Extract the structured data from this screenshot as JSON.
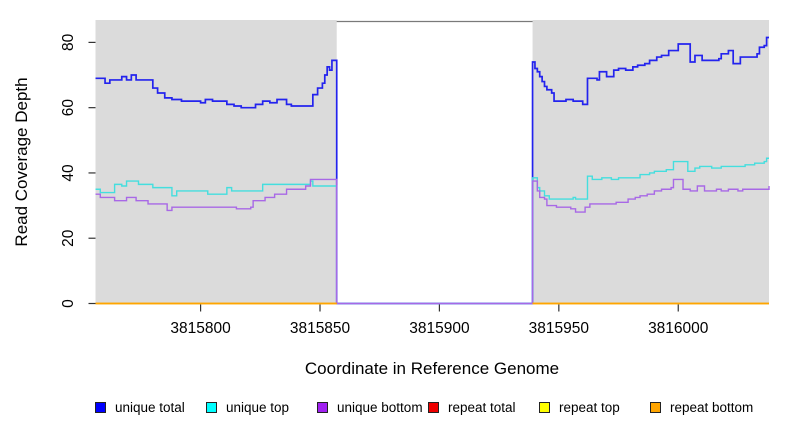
{
  "chart_data": {
    "type": "line",
    "step": true,
    "title": "",
    "xlabel": "Coordinate in Reference Genome",
    "ylabel": "Read Coverage Depth",
    "xlim": [
      3815756,
      3816038
    ],
    "ylim": [
      0,
      86.4
    ],
    "xticks": [
      3815800,
      3815850,
      3815900,
      3815950,
      3816000
    ],
    "yticks": [
      0,
      20,
      40,
      60,
      80
    ],
    "grid": false,
    "plot_background": "#ffffff",
    "shaded_regions": {
      "color": "#dbdbdb",
      "ranges": [
        [
          3815756,
          3815857
        ],
        [
          3815939,
          3816038
        ]
      ]
    },
    "gap_region": [
      3815857,
      3815939
    ],
    "legend_position": "bottom",
    "series": [
      {
        "name": "unique total",
        "color": "#2323ee",
        "legend_color": "#0000ff",
        "width": 1.7,
        "segments": [
          [
            [
              3815756,
              69
            ],
            [
              3815760,
              67.5
            ],
            [
              3815762,
              68.5
            ],
            [
              3815767,
              69.5
            ],
            [
              3815769,
              68.5
            ],
            [
              3815771,
              70
            ],
            [
              3815773,
              68.5
            ],
            [
              3815780,
              66
            ],
            [
              3815782,
              64.5
            ],
            [
              3815785,
              63
            ],
            [
              3815788,
              62.5
            ],
            [
              3815792,
              62
            ],
            [
              3815800,
              61.5
            ],
            [
              3815802,
              62.5
            ],
            [
              3815805,
              62
            ],
            [
              3815811,
              61
            ],
            [
              3815814,
              60.5
            ],
            [
              3815817,
              60
            ],
            [
              3815823,
              61
            ],
            [
              3815826,
              62
            ],
            [
              3815829,
              61.5
            ],
            [
              3815832,
              62.5
            ],
            [
              3815836,
              61
            ],
            [
              3815838,
              60.5
            ],
            [
              3815847,
              64
            ],
            [
              3815849,
              66
            ],
            [
              3815851,
              67.5
            ],
            [
              3815852,
              70
            ],
            [
              3815853,
              72.5
            ],
            [
              3815854,
              71.5
            ],
            [
              3815855,
              74.5
            ],
            [
              3815857,
              0
            ],
            [
              3815939,
              74
            ],
            [
              3815940,
              72
            ],
            [
              3815941,
              71
            ],
            [
              3815942,
              69.5
            ],
            [
              3815943,
              68
            ],
            [
              3815944,
              66.5
            ],
            [
              3815945,
              65.5
            ],
            [
              3815947,
              64.5
            ],
            [
              3815948,
              62
            ],
            [
              3815953,
              62.5
            ],
            [
              3815956,
              62
            ],
            [
              3815960,
              61
            ],
            [
              3815962,
              69
            ],
            [
              3815966,
              68.5
            ],
            [
              3815967,
              71
            ],
            [
              3815970,
              69.5
            ],
            [
              3815973,
              71.5
            ],
            [
              3815975,
              72
            ],
            [
              3815978,
              71.5
            ],
            [
              3815981,
              72.5
            ],
            [
              3815983,
              73
            ],
            [
              3815986,
              73.5
            ],
            [
              3815988,
              74.5
            ],
            [
              3815991,
              75.5
            ],
            [
              3815993,
              76
            ],
            [
              3815996,
              77.5
            ],
            [
              3815999,
              77.5
            ],
            [
              3816000,
              79.5
            ],
            [
              3816005,
              74
            ],
            [
              3816007,
              76
            ],
            [
              3816010,
              74.5
            ],
            [
              3816017,
              75
            ],
            [
              3816018,
              76.5
            ],
            [
              3816021,
              77.5
            ],
            [
              3816023,
              73.5
            ],
            [
              3816026,
              75.5
            ],
            [
              3816033,
              76.5
            ],
            [
              3816034,
              78.5
            ],
            [
              3816036,
              79
            ],
            [
              3816037,
              81.5
            ],
            [
              3816038,
              81.5
            ]
          ]
        ]
      },
      {
        "name": "unique top",
        "color": "#44dede",
        "legend_color": "#00ffff",
        "width": 1.4,
        "segments": [
          [
            [
              3815756,
              35
            ],
            [
              3815758,
              34
            ],
            [
              3815764,
              36.5
            ],
            [
              3815767,
              36
            ],
            [
              3815769,
              37.5
            ],
            [
              3815774,
              36.5
            ],
            [
              3815780,
              35.5
            ],
            [
              3815788,
              33
            ],
            [
              3815790,
              34.5
            ],
            [
              3815803,
              33.5
            ],
            [
              3815811,
              35.5
            ],
            [
              3815813,
              34.5
            ],
            [
              3815826,
              36.5
            ],
            [
              3815846,
              37.5
            ],
            [
              3815847,
              36
            ],
            [
              3815857,
              0
            ],
            [
              3815939,
              38.5
            ],
            [
              3815941,
              35.5
            ],
            [
              3815942,
              34.5
            ],
            [
              3815944,
              33
            ],
            [
              3815946,
              32
            ],
            [
              3815956,
              32.5
            ],
            [
              3815957,
              32
            ],
            [
              3815962,
              39
            ],
            [
              3815964,
              38
            ],
            [
              3815968,
              38.5
            ],
            [
              3815972,
              38
            ],
            [
              3815975,
              38.5
            ],
            [
              3815984,
              39.5
            ],
            [
              3815988,
              40
            ],
            [
              3815990,
              40.5
            ],
            [
              3815995,
              41
            ],
            [
              3815998,
              43.5
            ],
            [
              3816004,
              40.5
            ],
            [
              3816007,
              41.5
            ],
            [
              3816009,
              42
            ],
            [
              3816014,
              41.5
            ],
            [
              3816018,
              42
            ],
            [
              3816028,
              42.5
            ],
            [
              3816032,
              43
            ],
            [
              3816036,
              43.5
            ],
            [
              3816037,
              44.5
            ],
            [
              3816038,
              44.5
            ]
          ]
        ]
      },
      {
        "name": "unique bottom",
        "color": "#a868e6",
        "legend_color": "#a020f0",
        "width": 1.4,
        "segments": [
          [
            [
              3815756,
              33.5
            ],
            [
              3815758,
              32.5
            ],
            [
              3815764,
              31.5
            ],
            [
              3815769,
              32.5
            ],
            [
              3815773,
              31.5
            ],
            [
              3815778,
              30.5
            ],
            [
              3815786,
              28.5
            ],
            [
              3815788,
              29.5
            ],
            [
              3815815,
              29
            ],
            [
              3815821,
              29.5
            ],
            [
              3815822,
              31.5
            ],
            [
              3815827,
              32.5
            ],
            [
              3815831,
              33.5
            ],
            [
              3815836,
              35
            ],
            [
              3815844,
              36
            ],
            [
              3815846,
              38
            ],
            [
              3815857,
              0
            ],
            [
              3815939,
              37.5
            ],
            [
              3815941,
              34.5
            ],
            [
              3815942,
              32.5
            ],
            [
              3815944,
              32
            ],
            [
              3815945,
              30
            ],
            [
              3815949,
              29.5
            ],
            [
              3815955,
              29
            ],
            [
              3815957,
              28
            ],
            [
              3815961,
              29.5
            ],
            [
              3815963,
              30.5
            ],
            [
              3815974,
              31
            ],
            [
              3815979,
              32
            ],
            [
              3815982,
              32.5
            ],
            [
              3815984,
              33
            ],
            [
              3815987,
              33.5
            ],
            [
              3815990,
              34.5
            ],
            [
              3815993,
              35
            ],
            [
              3815997,
              35.5
            ],
            [
              3815998,
              38
            ],
            [
              3816002,
              35
            ],
            [
              3816005,
              34.5
            ],
            [
              3816008,
              36
            ],
            [
              3816011,
              34.5
            ],
            [
              3816016,
              35
            ],
            [
              3816018,
              34.5
            ],
            [
              3816021,
              35
            ],
            [
              3816025,
              34.5
            ],
            [
              3816027,
              35
            ],
            [
              3816036,
              35
            ],
            [
              3816038,
              36
            ]
          ]
        ]
      },
      {
        "name": "repeat total",
        "color": "#ee0000",
        "legend_color": "#ee0000",
        "width": 1.4,
        "segments": [
          [
            [
              3815756,
              0
            ],
            [
              3815857,
              0
            ]
          ],
          [
            [
              3815939,
              0
            ],
            [
              3816038,
              0
            ]
          ]
        ]
      },
      {
        "name": "repeat top",
        "color": "#ffff00",
        "legend_color": "#ffff00",
        "width": 1.4,
        "segments": [
          [
            [
              3815756,
              0
            ],
            [
              3815857,
              0
            ]
          ],
          [
            [
              3815939,
              0
            ],
            [
              3816038,
              0
            ]
          ]
        ]
      },
      {
        "name": "repeat bottom",
        "color": "#ffa500",
        "legend_color": "#ffa500",
        "width": 1.6,
        "segments": [
          [
            [
              3815756,
              0
            ],
            [
              3815857,
              0
            ]
          ],
          [
            [
              3815939,
              0
            ],
            [
              3816038,
              0
            ]
          ]
        ]
      }
    ]
  }
}
